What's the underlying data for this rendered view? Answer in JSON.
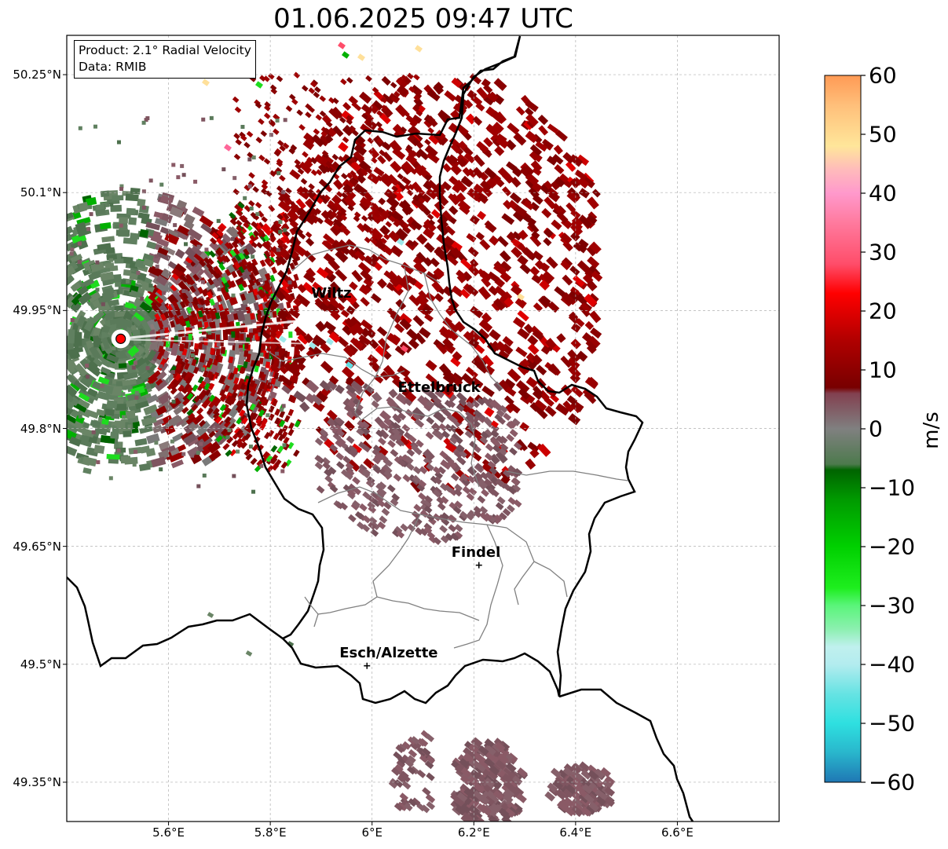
{
  "title": "01.06.2025 09:47 UTC",
  "info": {
    "product": "Product: 2.1° Radial Velocity",
    "data": "Data: RMIB"
  },
  "map": {
    "lon_range": [
      5.4,
      6.8
    ],
    "lat_range": [
      49.3,
      50.3
    ],
    "lat_ticks": [
      {
        "value": 50.25,
        "label": "50.25°N"
      },
      {
        "value": 50.1,
        "label": "50.1°N"
      },
      {
        "value": 49.95,
        "label": "49.95°N"
      },
      {
        "value": 49.8,
        "label": "49.8°N"
      },
      {
        "value": 49.65,
        "label": "49.65°N"
      },
      {
        "value": 49.5,
        "label": "49.5°N"
      },
      {
        "value": 49.35,
        "label": "49.35°N"
      }
    ],
    "lon_ticks": [
      {
        "value": 5.6,
        "label": "5.6°E"
      },
      {
        "value": 5.8,
        "label": "5.8°E"
      },
      {
        "value": 6.0,
        "label": "6°E"
      },
      {
        "value": 6.2,
        "label": "6.2°E"
      },
      {
        "value": 6.4,
        "label": "6.4°E"
      },
      {
        "value": 6.6,
        "label": "6.6°E"
      }
    ],
    "grid": true,
    "radar_site": {
      "lon": 5.506,
      "lat": 49.914,
      "color": "#ff0000"
    },
    "cities": [
      {
        "name": "Wiltz",
        "lon": 5.93,
        "lat": 49.97,
        "marker": false
      },
      {
        "name": "Ettelbruck",
        "lon": 6.1,
        "lat": 49.85,
        "marker": false
      },
      {
        "name": "Findel",
        "lon": 6.21,
        "lat": 49.626,
        "marker": true
      },
      {
        "name": "Esch/Alzette",
        "lon": 5.99,
        "lat": 49.498,
        "marker": true
      }
    ]
  },
  "colorbar": {
    "min": -60,
    "max": 60,
    "unit": "m/s",
    "ticks": [
      {
        "value": 60,
        "label": "60"
      },
      {
        "value": 50,
        "label": "50"
      },
      {
        "value": 40,
        "label": "40"
      },
      {
        "value": 30,
        "label": "30"
      },
      {
        "value": 20,
        "label": "20"
      },
      {
        "value": 10,
        "label": "10"
      },
      {
        "value": 0,
        "label": "0"
      },
      {
        "value": -10,
        "label": "−10"
      },
      {
        "value": -20,
        "label": "−20"
      },
      {
        "value": -30,
        "label": "−30"
      },
      {
        "value": -40,
        "label": "−40"
      },
      {
        "value": -50,
        "label": "−50"
      },
      {
        "value": -60,
        "label": "−60"
      }
    ],
    "stops": [
      {
        "value": -60,
        "color": "#1f77b4"
      },
      {
        "value": -55,
        "color": "#29b6cc"
      },
      {
        "value": -50,
        "color": "#2ee0e0"
      },
      {
        "value": -45,
        "color": "#66e3e3"
      },
      {
        "value": -40,
        "color": "#b3ecef"
      },
      {
        "value": -37,
        "color": "#c0f0ee"
      },
      {
        "value": -34,
        "color": "#8cf0b0"
      },
      {
        "value": -30,
        "color": "#5af57a"
      },
      {
        "value": -27,
        "color": "#1eee1e"
      },
      {
        "value": -20,
        "color": "#00d000"
      },
      {
        "value": -12,
        "color": "#009a00"
      },
      {
        "value": -7,
        "color": "#006400"
      },
      {
        "value": -6,
        "color": "#4d7a4d"
      },
      {
        "value": 0,
        "color": "#808080"
      },
      {
        "value": 6,
        "color": "#824050"
      },
      {
        "value": 7,
        "color": "#780000"
      },
      {
        "value": 15,
        "color": "#b00000"
      },
      {
        "value": 23,
        "color": "#ff0000"
      },
      {
        "value": 28,
        "color": "#ff4d6a"
      },
      {
        "value": 35,
        "color": "#ff7a9e"
      },
      {
        "value": 40,
        "color": "#ff99cc"
      },
      {
        "value": 44,
        "color": "#ffbbbb"
      },
      {
        "value": 48,
        "color": "#ffe69a"
      },
      {
        "value": 55,
        "color": "#ffbf7a"
      },
      {
        "value": 60,
        "color": "#ff9a55"
      }
    ]
  }
}
